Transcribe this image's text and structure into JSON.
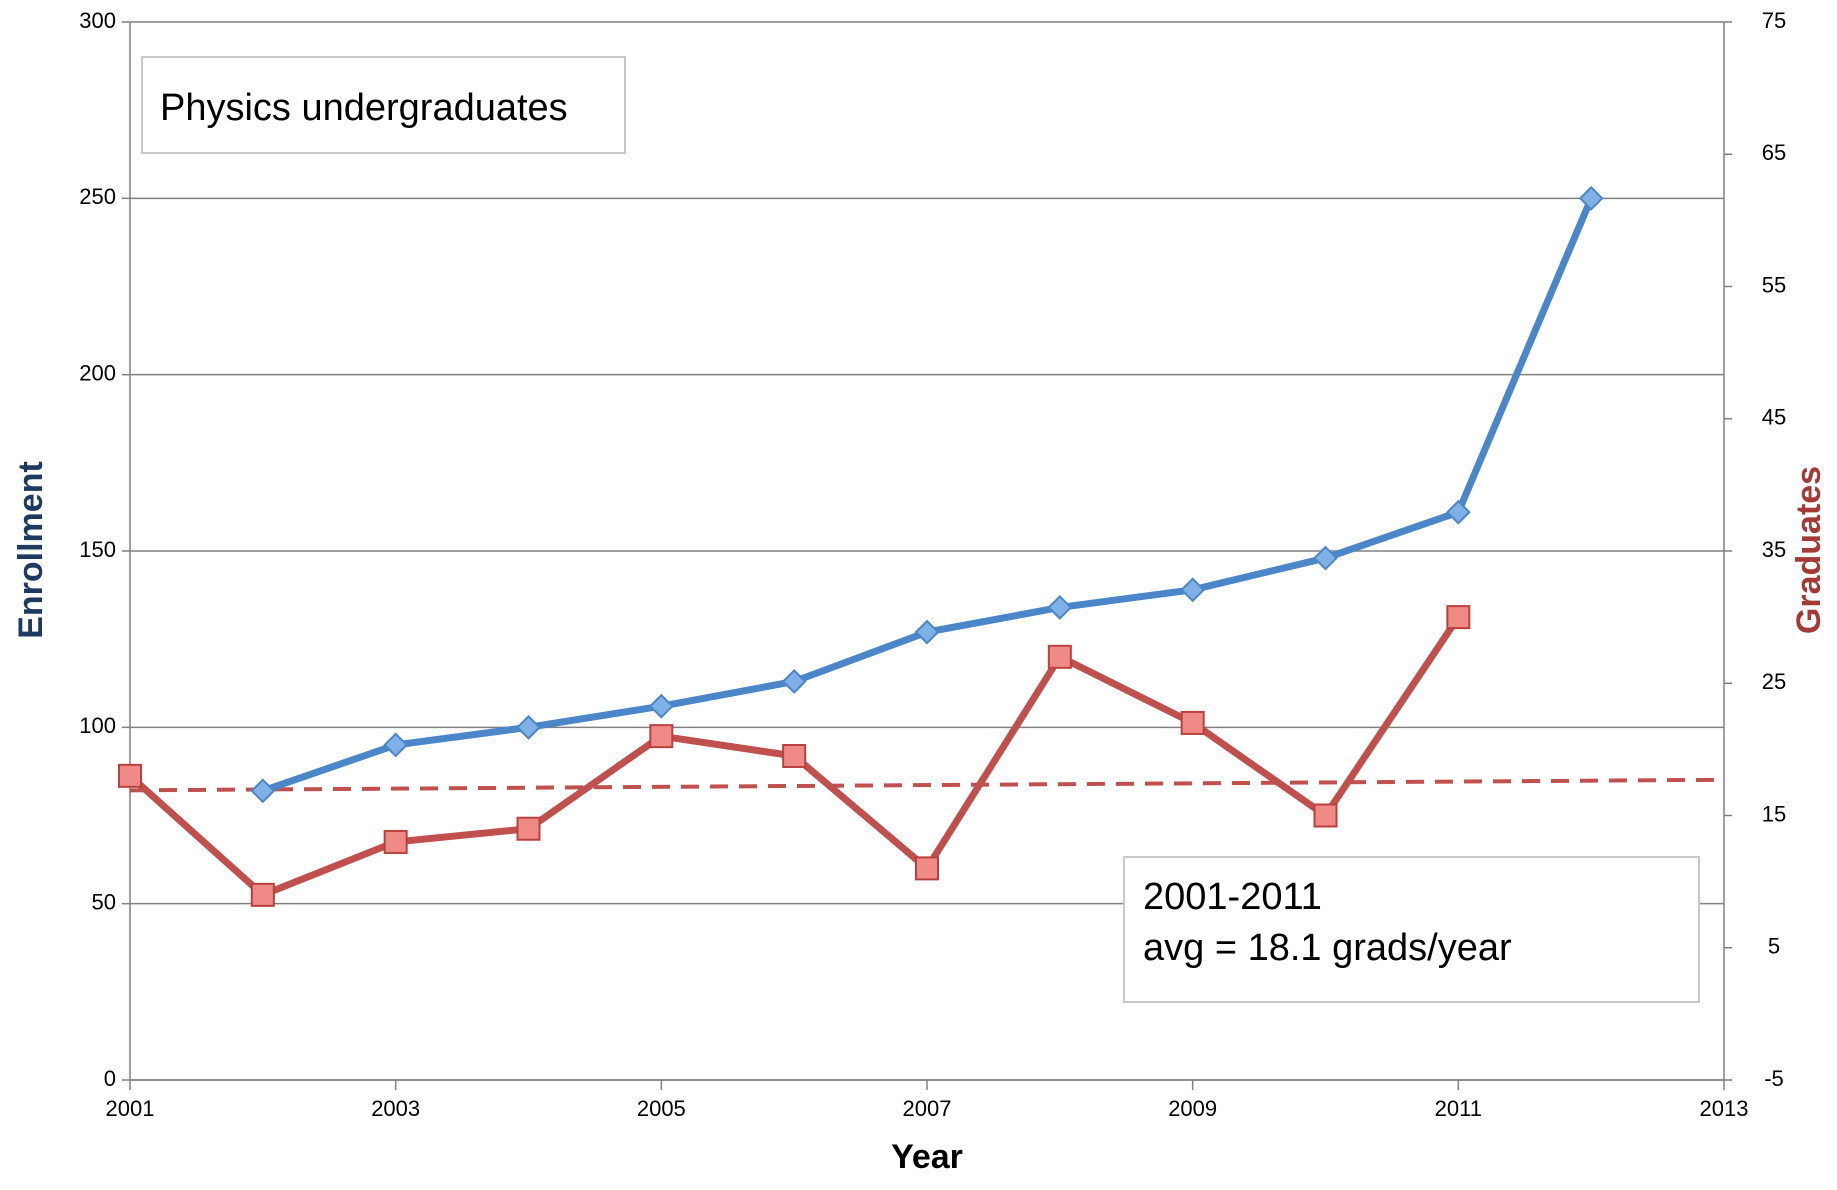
{
  "chart_data": {
    "type": "line",
    "title": "Physics undergraduates",
    "xlabel": "Year",
    "ylabel": "Enrollment",
    "y2label": "Graduates",
    "x_ticks": [
      "2001",
      "2003",
      "2005",
      "2007",
      "2009",
      "2011",
      "2013"
    ],
    "y_ticks": [
      "0",
      "50",
      "100",
      "150",
      "200",
      "250",
      "300"
    ],
    "y2_ticks": [
      "-5",
      "5",
      "15",
      "25",
      "35",
      "45",
      "55",
      "65",
      "75"
    ],
    "xlim": [
      2001,
      2013
    ],
    "ylim": [
      0,
      300
    ],
    "y2lim": [
      -5,
      75
    ],
    "grid": true,
    "series": [
      {
        "axis": "left",
        "color": "#4a86c8",
        "marker": "diamond",
        "x": [
          2002,
          2003,
          2004,
          2005,
          2006,
          2007,
          2008,
          2009,
          2010,
          2011,
          2012
        ],
        "y": [
          82,
          95,
          100,
          106,
          113,
          127,
          134,
          139,
          148,
          161,
          250
        ]
      },
      {
        "axis": "right",
        "color": "#c0504d",
        "marker": "square",
        "x": [
          2001,
          2002,
          2003,
          2004,
          2005,
          2006,
          2007,
          2008,
          2009,
          2010,
          2011
        ],
        "y": [
          18,
          9,
          13,
          14,
          21,
          19.5,
          11,
          27,
          22,
          15,
          30
        ]
      }
    ],
    "trendline": {
      "axis": "right",
      "color": "#c0504d",
      "style": "dashed",
      "x": [
        2001,
        2013
      ],
      "y": [
        16.9,
        17.7
      ]
    },
    "annotation": {
      "line1": "2001-2011",
      "line2": "avg = 18.1 grads/year"
    },
    "colors": {
      "enrollment_title": "#1f3a5f",
      "graduates_title": "#a33a36",
      "grid": "#808080"
    }
  }
}
